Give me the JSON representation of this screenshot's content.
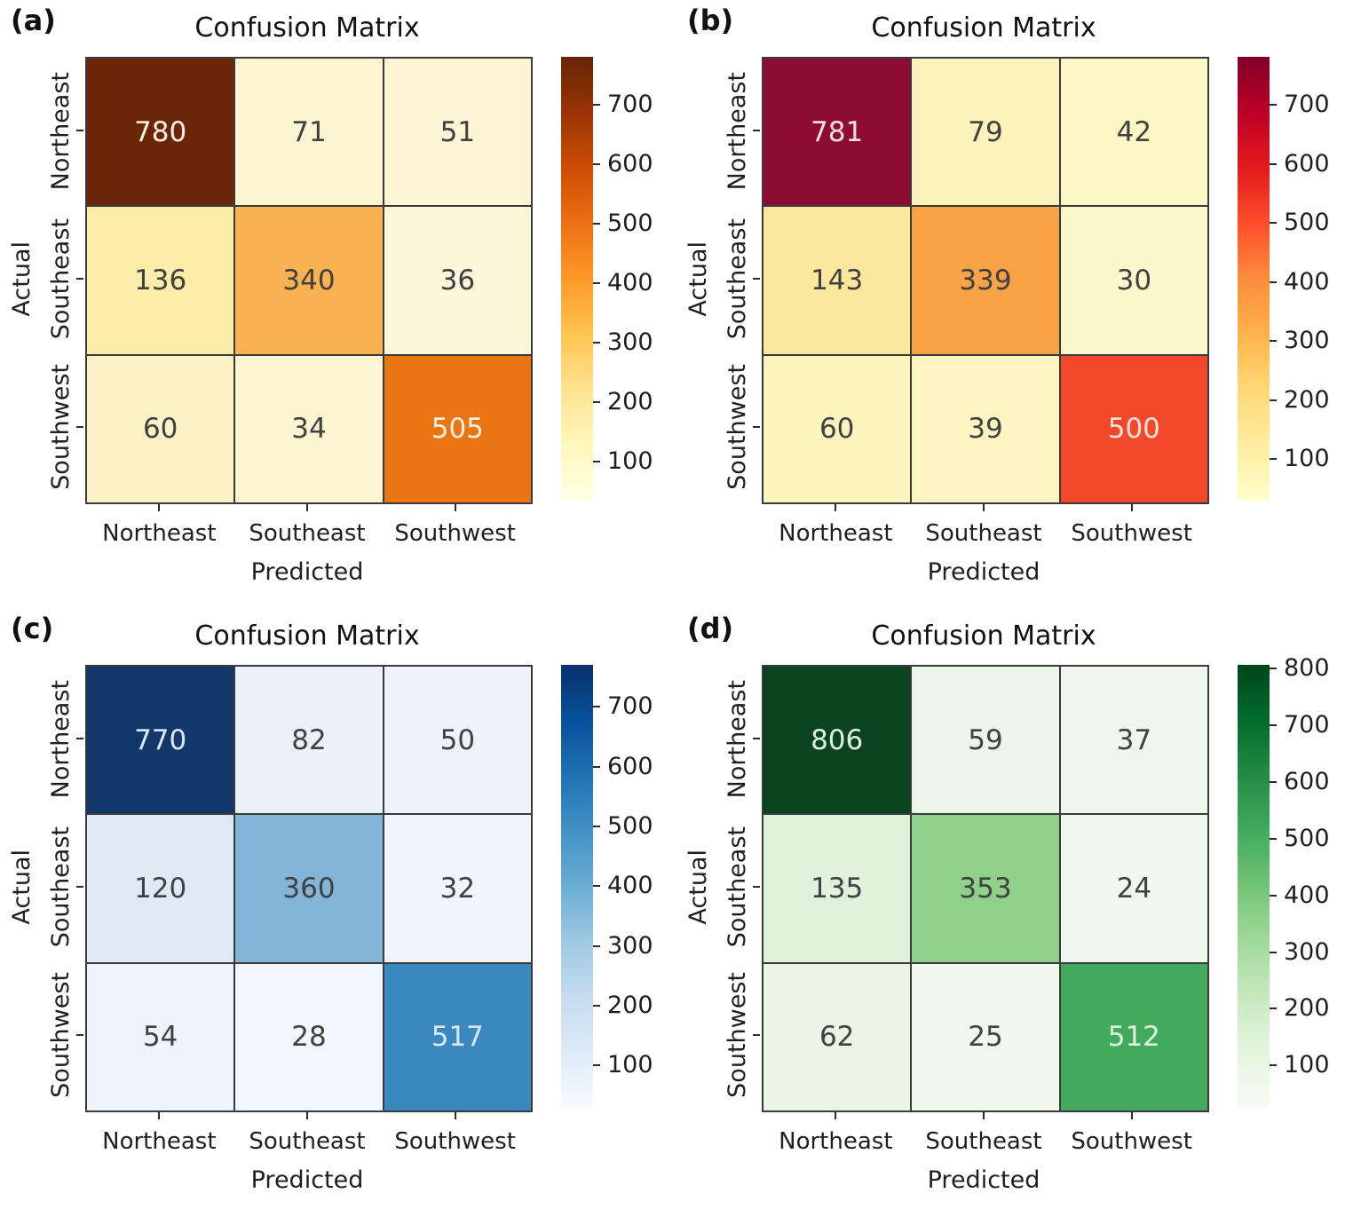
{
  "figure": {
    "background": "#ffffff",
    "grid_line_color": "#3a3a3a"
  },
  "chart_data": [
    {
      "type": "heatmap",
      "panel_label": "(a)",
      "title": "Confusion Matrix",
      "xlabel": "Predicted",
      "ylabel": "Actual",
      "x_categories": [
        "Northeast",
        "Southeast",
        "Southwest"
      ],
      "y_categories": [
        "Northeast",
        "Southeast",
        "Southwest"
      ],
      "matrix": [
        [
          780,
          71,
          51
        ],
        [
          136,
          340,
          36
        ],
        [
          60,
          34,
          505
        ]
      ],
      "colormap": "YlOrBr",
      "vmin": 34,
      "vmax": 780,
      "cell_colors": [
        [
          "#6b2607",
          "#fdf4d1",
          "#fdf5d4"
        ],
        [
          "#fbeca9",
          "#fab151",
          "#fdf6d9"
        ],
        [
          "#fcf2c6",
          "#fdf5d2",
          "#e97513"
        ]
      ],
      "light_text_cells": [
        [
          true,
          false,
          false
        ],
        [
          false,
          false,
          false
        ],
        [
          false,
          false,
          true
        ]
      ],
      "value_text_dark": "#414141",
      "value_text_light": "#fcefe3",
      "colorbar": {
        "ticks": [
          700,
          600,
          500,
          400,
          300,
          200,
          100
        ],
        "gradient_top_to_bottom": [
          "#662506",
          "#993404",
          "#cc4c02",
          "#ec7014",
          "#fe9929",
          "#fec44f",
          "#fee391",
          "#fff7bc",
          "#ffffe5"
        ]
      }
    },
    {
      "type": "heatmap",
      "panel_label": "(b)",
      "title": "Confusion Matrix",
      "xlabel": "Predicted",
      "ylabel": "Actual",
      "x_categories": [
        "Northeast",
        "Southeast",
        "Southwest"
      ],
      "y_categories": [
        "Northeast",
        "Southeast",
        "Southwest"
      ],
      "matrix": [
        [
          781,
          79,
          42
        ],
        [
          143,
          339,
          30
        ],
        [
          60,
          39,
          500
        ]
      ],
      "colormap": "YlOrRd",
      "vmin": 30,
      "vmax": 781,
      "cell_colors": [
        [
          "#8e0b32",
          "#fcf2bb",
          "#fdf6c5"
        ],
        [
          "#fbe79e",
          "#f9a246",
          "#fdf8cb"
        ],
        [
          "#fcf4bd",
          "#fcf5c1",
          "#f4482b"
        ]
      ],
      "light_text_cells": [
        [
          true,
          false,
          false
        ],
        [
          false,
          false,
          false
        ],
        [
          false,
          false,
          true
        ]
      ],
      "value_text_dark": "#414141",
      "value_text_light": "#fbe3dc",
      "colorbar": {
        "ticks": [
          700,
          600,
          500,
          400,
          300,
          200,
          100
        ],
        "gradient_top_to_bottom": [
          "#800026",
          "#bd0026",
          "#e31a1c",
          "#fc4e2a",
          "#fd8d3c",
          "#feb24c",
          "#fed976",
          "#ffeda0",
          "#ffffcc"
        ]
      }
    },
    {
      "type": "heatmap",
      "panel_label": "(c)",
      "title": "Confusion Matrix",
      "xlabel": "Predicted",
      "ylabel": "Actual",
      "x_categories": [
        "Northeast",
        "Southeast",
        "Southwest"
      ],
      "y_categories": [
        "Northeast",
        "Southeast",
        "Southwest"
      ],
      "matrix": [
        [
          770,
          82,
          50
        ],
        [
          120,
          360,
          32
        ],
        [
          54,
          28,
          517
        ]
      ],
      "colormap": "Blues",
      "vmin": 28,
      "vmax": 770,
      "cell_colors": [
        [
          "#123769",
          "#e9f1f9",
          "#edf3fa"
        ],
        [
          "#dfeaf5",
          "#82b5d8",
          "#f0f6fb"
        ],
        [
          "#eef4fb",
          "#f2f7fd",
          "#3b88c1"
        ]
      ],
      "light_text_cells": [
        [
          true,
          false,
          false
        ],
        [
          false,
          false,
          false
        ],
        [
          false,
          false,
          true
        ]
      ],
      "value_text_dark": "#414141",
      "value_text_light": "#d9e8f5",
      "colorbar": {
        "ticks": [
          700,
          600,
          500,
          400,
          300,
          200,
          100
        ],
        "gradient_top_to_bottom": [
          "#08306b",
          "#08519c",
          "#2171b5",
          "#4292c6",
          "#6baed6",
          "#9ecae1",
          "#c6dbef",
          "#deebf7",
          "#f7fbff"
        ]
      }
    },
    {
      "type": "heatmap",
      "panel_label": "(d)",
      "title": "Confusion Matrix",
      "xlabel": "Predicted",
      "ylabel": "Actual",
      "x_categories": [
        "Northeast",
        "Southeast",
        "Southwest"
      ],
      "y_categories": [
        "Northeast",
        "Southeast",
        "Southwest"
      ],
      "matrix": [
        [
          806,
          59,
          37
        ],
        [
          135,
          353,
          24
        ],
        [
          62,
          25,
          512
        ]
      ],
      "colormap": "Greens",
      "vmin": 24,
      "vmax": 806,
      "cell_colors": [
        [
          "#0a431f",
          "#eaf6e7",
          "#edf8ea"
        ],
        [
          "#e0f2db",
          "#8fd08b",
          "#f0f9ed"
        ],
        [
          "#e9f6e5",
          "#f0f9ed",
          "#41aa5d"
        ]
      ],
      "light_text_cells": [
        [
          true,
          false,
          false
        ],
        [
          false,
          false,
          false
        ],
        [
          false,
          false,
          true
        ]
      ],
      "value_text_dark": "#414141",
      "value_text_light": "#ddf0df",
      "colorbar": {
        "ticks": [
          800,
          700,
          600,
          500,
          400,
          300,
          200,
          100
        ],
        "gradient_top_to_bottom": [
          "#00441b",
          "#006d2c",
          "#238b45",
          "#41ab5d",
          "#74c476",
          "#a1d99b",
          "#c7e9c0",
          "#e5f5e0",
          "#f7fcf5"
        ]
      }
    }
  ]
}
